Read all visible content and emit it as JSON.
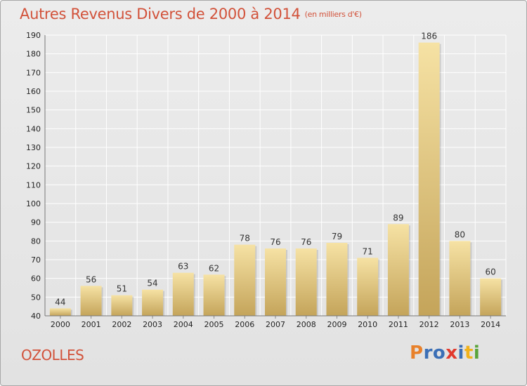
{
  "title": "Autres Revenus Divers de 2000 à 2014",
  "subtitle": "(en milliers d'€)",
  "city": "OZOLLES",
  "logo": {
    "letters": [
      "P",
      "r",
      "o",
      "x",
      "i",
      "t",
      "i"
    ],
    "colors": [
      "#e8812b",
      "#3b6fb6",
      "#3b6fb6",
      "#e23a2e",
      "#3b6fb6",
      "#f1b21c",
      "#5aa43b"
    ]
  },
  "colors": {
    "title": "#d2523a",
    "bar_light": "#f4dc98",
    "bar_dark": "#c6a75c",
    "grid": "#ffffff"
  },
  "chart_data": {
    "type": "bar",
    "title": "Autres Revenus Divers de 2000 à 2014",
    "ylabel": "(en milliers d'€)",
    "categories": [
      "2000",
      "2001",
      "2002",
      "2003",
      "2004",
      "2005",
      "2006",
      "2007",
      "2008",
      "2009",
      "2010",
      "2011",
      "2012",
      "2013",
      "2014"
    ],
    "values": [
      44,
      56,
      51,
      54,
      63,
      62,
      78,
      76,
      76,
      79,
      71,
      89,
      186,
      80,
      60
    ],
    "ylim": [
      40,
      190
    ],
    "yticks": [
      40,
      50,
      60,
      70,
      80,
      90,
      100,
      110,
      120,
      130,
      140,
      150,
      160,
      170,
      180,
      190
    ],
    "grid": true
  }
}
